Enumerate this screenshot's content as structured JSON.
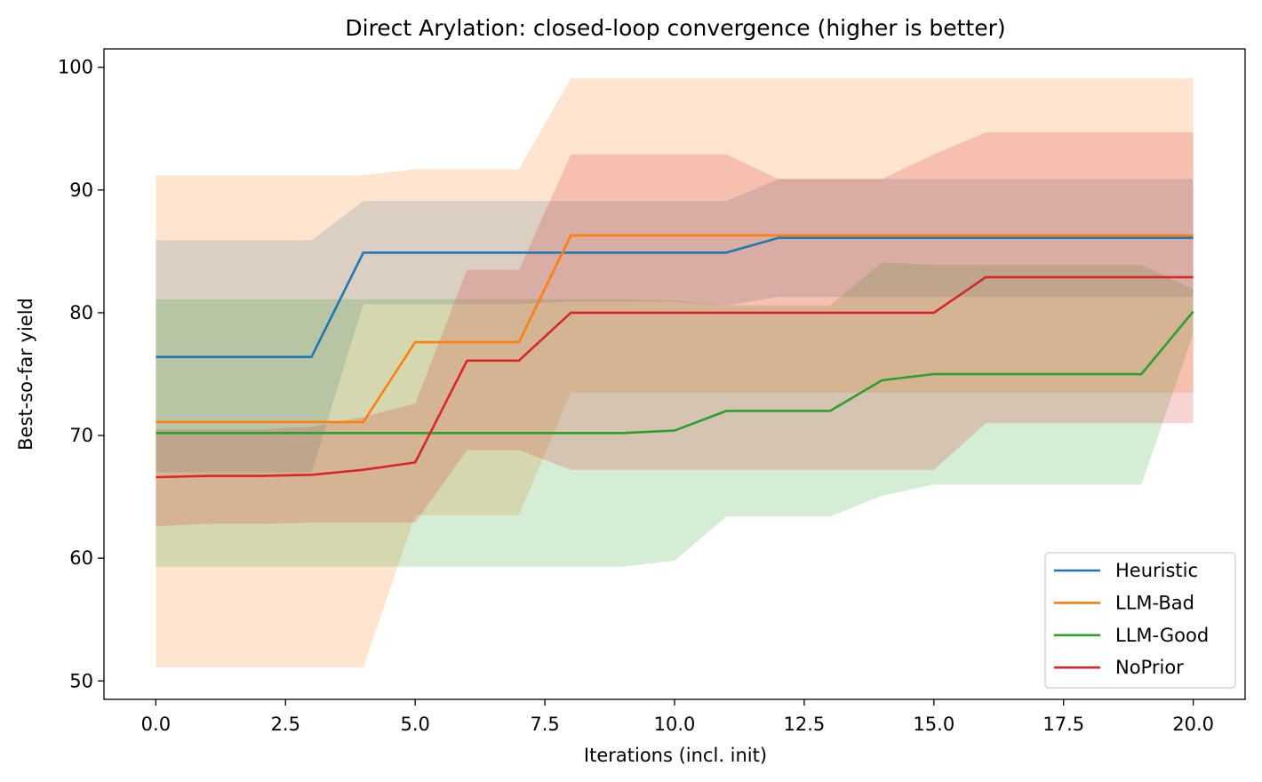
{
  "chart_data": {
    "type": "line",
    "title": "Direct Arylation: closed-loop convergence (higher is better)",
    "xlabel": "Iterations (incl. init)",
    "ylabel": "Best-so-far yield",
    "xlim": [
      -1,
      21
    ],
    "ylim": [
      48.5,
      101.5
    ],
    "xticks": [
      0,
      2.5,
      5,
      7.5,
      10,
      12.5,
      15,
      17.5,
      20
    ],
    "xtick_labels": [
      "0.0",
      "2.5",
      "5.0",
      "7.5",
      "10.0",
      "12.5",
      "15.0",
      "17.5",
      "20.0"
    ],
    "yticks": [
      50,
      60,
      70,
      80,
      90,
      100
    ],
    "ytick_labels": [
      "50",
      "60",
      "70",
      "80",
      "90",
      "100"
    ],
    "grid": false,
    "legend_position": "bottom-right",
    "x": [
      0,
      1,
      2,
      3,
      4,
      5,
      6,
      7,
      8,
      9,
      10,
      11,
      12,
      13,
      14,
      15,
      16,
      17,
      18,
      19,
      20
    ],
    "series": [
      {
        "name": "Heuristic",
        "color": "#1f77b4",
        "mean": [
          76.4,
          76.4,
          76.4,
          76.4,
          84.9,
          84.9,
          84.9,
          84.9,
          84.9,
          84.9,
          84.9,
          84.9,
          86.1,
          86.1,
          86.1,
          86.1,
          86.1,
          86.1,
          86.1,
          86.1,
          86.1
        ],
        "lower": [
          67.0,
          67.0,
          67.0,
          67.0,
          80.7,
          80.7,
          80.7,
          80.7,
          80.9,
          80.9,
          80.9,
          80.6,
          81.3,
          81.3,
          81.3,
          81.3,
          81.3,
          81.3,
          81.3,
          81.3,
          81.3
        ],
        "upper": [
          85.9,
          85.9,
          85.9,
          85.9,
          89.1,
          89.1,
          89.1,
          89.1,
          89.1,
          89.1,
          89.1,
          89.1,
          90.9,
          90.9,
          90.9,
          90.9,
          90.9,
          90.9,
          90.9,
          90.9,
          90.9
        ]
      },
      {
        "name": "LLM-Bad",
        "color": "#ff7f0e",
        "mean": [
          71.1,
          71.1,
          71.1,
          71.1,
          71.1,
          77.6,
          77.6,
          77.6,
          86.3,
          86.3,
          86.3,
          86.3,
          86.3,
          86.3,
          86.3,
          86.3,
          86.3,
          86.3,
          86.3,
          86.3,
          86.3
        ],
        "lower": [
          51.1,
          51.1,
          51.1,
          51.1,
          51.1,
          63.5,
          63.5,
          63.5,
          73.5,
          73.5,
          73.5,
          73.5,
          73.5,
          73.5,
          73.5,
          73.5,
          73.5,
          73.5,
          73.5,
          73.5,
          73.5
        ],
        "upper": [
          91.2,
          91.2,
          91.2,
          91.2,
          91.2,
          91.7,
          91.7,
          91.7,
          99.1,
          99.1,
          99.1,
          99.1,
          99.1,
          99.1,
          99.1,
          99.1,
          99.1,
          99.1,
          99.1,
          99.1,
          99.1
        ]
      },
      {
        "name": "LLM-Good",
        "color": "#2ca02c",
        "mean": [
          70.2,
          70.2,
          70.2,
          70.2,
          70.2,
          70.2,
          70.2,
          70.2,
          70.2,
          70.2,
          70.4,
          72.0,
          72.0,
          72.0,
          74.5,
          75.0,
          75.0,
          75.0,
          75.0,
          75.0,
          80.1
        ],
        "lower": [
          59.3,
          59.3,
          59.3,
          59.3,
          59.3,
          59.3,
          59.3,
          59.3,
          59.3,
          59.3,
          59.8,
          63.4,
          63.4,
          63.4,
          65.1,
          66.0,
          66.0,
          66.0,
          66.0,
          66.0,
          78.3
        ],
        "upper": [
          81.1,
          81.1,
          81.1,
          81.1,
          81.1,
          81.1,
          81.1,
          81.1,
          81.1,
          81.1,
          81.0,
          80.6,
          80.6,
          80.6,
          84.1,
          83.9,
          83.9,
          83.9,
          83.9,
          83.9,
          81.9
        ]
      },
      {
        "name": "NoPrior",
        "color": "#d62728",
        "mean": [
          66.6,
          66.7,
          66.7,
          66.8,
          67.2,
          67.8,
          76.1,
          76.1,
          80.0,
          80.0,
          80.0,
          80.0,
          80.0,
          80.0,
          80.0,
          80.0,
          82.9,
          82.9,
          82.9,
          82.9,
          82.9
        ],
        "lower": [
          62.6,
          62.8,
          62.8,
          62.9,
          62.9,
          62.9,
          68.8,
          68.8,
          67.2,
          67.2,
          67.2,
          67.2,
          67.2,
          67.2,
          67.2,
          67.2,
          71.0,
          71.0,
          71.0,
          71.0,
          71.0
        ],
        "upper": [
          70.5,
          70.5,
          70.5,
          70.7,
          71.5,
          72.6,
          83.5,
          83.5,
          92.9,
          92.9,
          92.9,
          92.9,
          90.9,
          90.9,
          90.9,
          92.9,
          94.7,
          94.7,
          94.7,
          94.7,
          94.7
        ]
      }
    ]
  }
}
